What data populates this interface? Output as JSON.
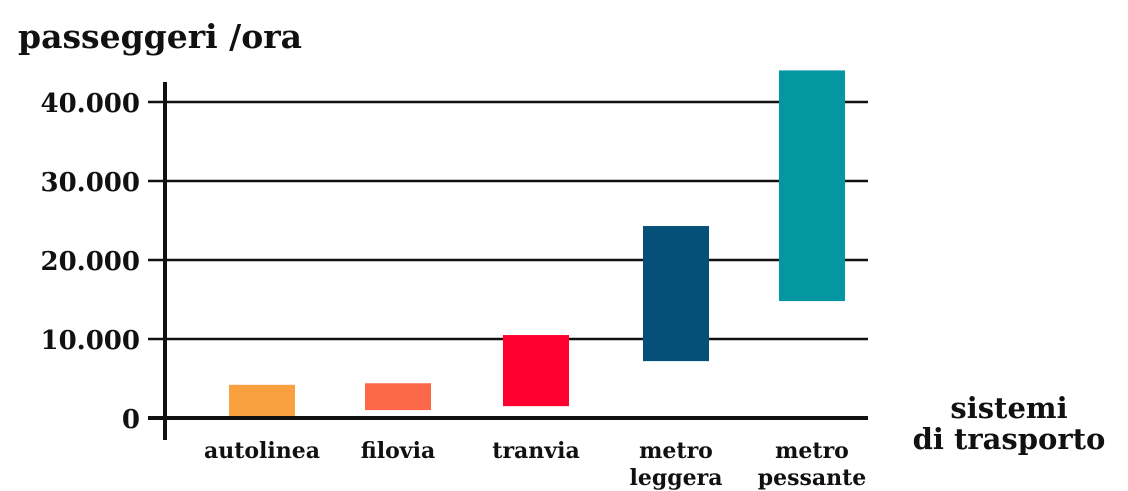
{
  "chart_data": {
    "type": "bar",
    "subtype": "floating-range",
    "ylabel": "passeggeri /ora",
    "xlabel": [
      "sistemi",
      "di trasporto"
    ],
    "ylim": [
      0,
      44000
    ],
    "yticks": [
      0,
      10000,
      20000,
      30000,
      40000
    ],
    "ytick_labels": [
      "0",
      "10.000",
      "20.000",
      "30.000",
      "40.000"
    ],
    "grid": true,
    "categories": [
      [
        "autolinea"
      ],
      [
        "filovia"
      ],
      [
        "tranvia"
      ],
      [
        "metro",
        "leggera"
      ],
      [
        "metro",
        "pessante"
      ]
    ],
    "ranges": [
      [
        0,
        4200
      ],
      [
        1000,
        4400
      ],
      [
        1500,
        10500
      ],
      [
        7200,
        24300
      ],
      [
        14800,
        44000
      ]
    ],
    "colors": [
      "#F9A03F",
      "#FD684A",
      "#FF0030",
      "#045079",
      "#0496A1"
    ]
  }
}
